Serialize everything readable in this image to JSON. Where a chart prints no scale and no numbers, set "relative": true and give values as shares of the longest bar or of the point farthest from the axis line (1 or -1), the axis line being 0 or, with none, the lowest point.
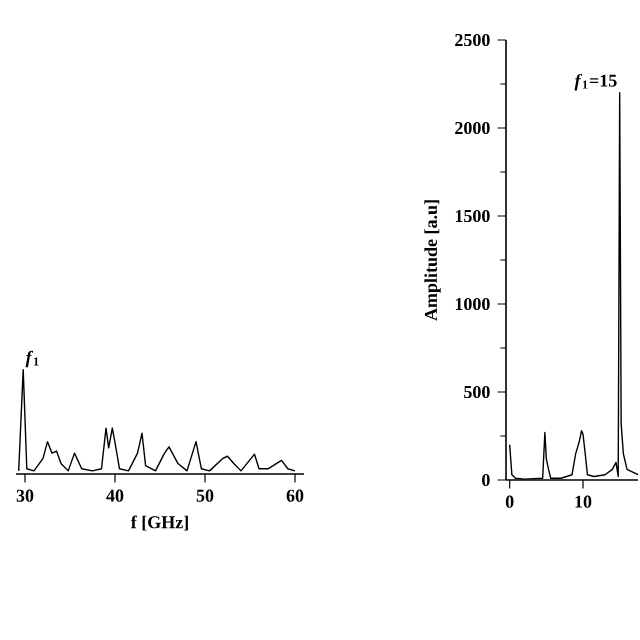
{
  "chart_data": [
    {
      "type": "line",
      "relative": true,
      "color": "#000000",
      "xlabel": "f [GHz]",
      "xlim": [
        29,
        61
      ],
      "xticks": [
        30,
        40,
        50,
        60
      ],
      "tick_labels": "x",
      "annotations": [
        {
          "text": "*f*$_{1}$",
          "x": 29.8,
          "y": 1
        }
      ],
      "x": [
        29.3,
        29.8,
        30.2,
        31,
        32,
        32.5,
        33,
        33.5,
        34,
        34.8,
        35.5,
        36.3,
        37.5,
        38.5,
        39,
        39.3,
        39.7,
        40,
        40.5,
        41.5,
        42.5,
        43,
        43.4,
        44.5,
        45.5,
        46,
        47,
        48,
        49,
        49.6,
        50.5,
        52,
        52.5,
        53.2,
        54,
        55.5,
        56,
        57,
        58.5,
        59.2,
        60
      ],
      "values": [
        0.03,
        1,
        0.05,
        0.03,
        0.15,
        0.31,
        0.2,
        0.22,
        0.1,
        0.03,
        0.2,
        0.05,
        0.03,
        0.05,
        0.44,
        0.25,
        0.44,
        0.3,
        0.05,
        0.03,
        0.2,
        0.39,
        0.08,
        0.03,
        0.2,
        0.26,
        0.1,
        0.03,
        0.31,
        0.05,
        0.03,
        0.15,
        0.17,
        0.1,
        0.03,
        0.19,
        0.05,
        0.05,
        0.13,
        0.05,
        0.03
      ]
    },
    {
      "type": "line",
      "color": "#000000",
      "ylabel": "Amplitude [a.u]",
      "xlim": [
        -0.5,
        17.5
      ],
      "xticks": [
        0,
        10
      ],
      "ylim": [
        0,
        2500
      ],
      "yticks": [
        0,
        500,
        1000,
        1500,
        2000,
        2500
      ],
      "annotations": [
        {
          "text": "*f*$_{1}$=15",
          "x": 15,
          "y": 2200
        }
      ],
      "x": [
        0,
        0.3,
        0.8,
        2,
        4.5,
        4.8,
        5,
        5.3,
        5.6,
        7,
        8.5,
        9,
        9.5,
        9.8,
        10,
        10.3,
        10.6,
        11.5,
        13,
        14,
        14.5,
        14.8,
        15,
        15.2,
        15.5,
        16,
        17,
        17.5
      ],
      "values": [
        200,
        30,
        10,
        5,
        10,
        270,
        120,
        60,
        10,
        10,
        30,
        150,
        220,
        280,
        260,
        150,
        30,
        20,
        30,
        60,
        100,
        20,
        2200,
        320,
        150,
        60,
        40,
        30
      ]
    }
  ]
}
